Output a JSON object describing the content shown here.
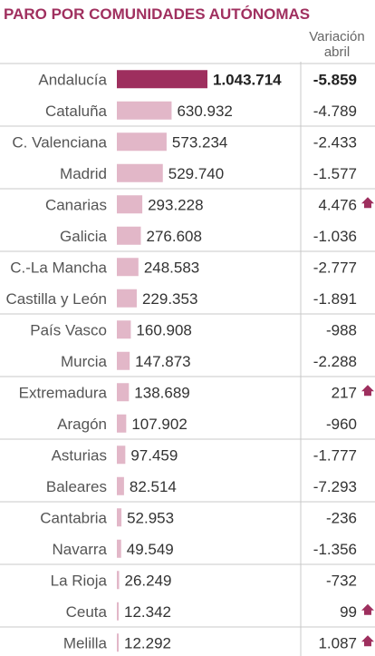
{
  "title": "PARO POR COMUNIDADES AUTÓNOMAS",
  "variation_header": {
    "line1": "Variación",
    "line2": "abril"
  },
  "colors": {
    "accent": "#a0305f",
    "bar_highlight": "#9e2f5e",
    "bar_default": "#e2b7c8",
    "up_arrow": "#9e2f5e",
    "divider": "#c9c9c9"
  },
  "chart_data": {
    "type": "bar",
    "orientation": "horizontal",
    "title": "PARO POR COMUNIDADES AUTÓNOMAS",
    "categories": [
      "Andalucía",
      "Cataluña",
      "C. Valenciana",
      "Madrid",
      "Canarias",
      "Galicia",
      "C.-La Mancha",
      "Castilla y León",
      "País Vasco",
      "Murcia",
      "Extremadura",
      "Aragón",
      "Asturias",
      "Baleares",
      "Cantabria",
      "Navarra",
      "La Rioja",
      "Ceuta",
      "Melilla"
    ],
    "values": [
      1043714,
      630932,
      573234,
      529740,
      293228,
      276608,
      248583,
      229353,
      160908,
      147873,
      138689,
      107902,
      97459,
      82514,
      52953,
      49549,
      26249,
      12342,
      12292
    ],
    "value_labels": [
      "1.043.714",
      "630.932",
      "573.234",
      "529.740",
      "293.228",
      "276.608",
      "248.583",
      "229.353",
      "160.908",
      "147.873",
      "138.689",
      "107.902",
      "97.459",
      "82.514",
      "52.953",
      "49.549",
      "26.249",
      "12.342",
      "12.292"
    ],
    "variation_header": "Variación abril",
    "variation": [
      -5859,
      -4789,
      -2433,
      -1577,
      4476,
      -1036,
      -2777,
      -1891,
      -988,
      -2288,
      217,
      -960,
      -1777,
      -7293,
      -236,
      -1356,
      -732,
      99,
      1087
    ],
    "variation_labels": [
      "-5.859",
      "-4.789",
      "-2.433",
      "-1.577",
      "4.476",
      "-1.036",
      "-2.777",
      "-1.891",
      "-988",
      "-2.288",
      "217",
      "-960",
      "-1.777",
      "-7.293",
      "-236",
      "-1.356",
      "-732",
      "99",
      "1.087"
    ],
    "highlighted": [
      "Andalucía"
    ],
    "xlim": [
      0,
      1043714
    ]
  }
}
